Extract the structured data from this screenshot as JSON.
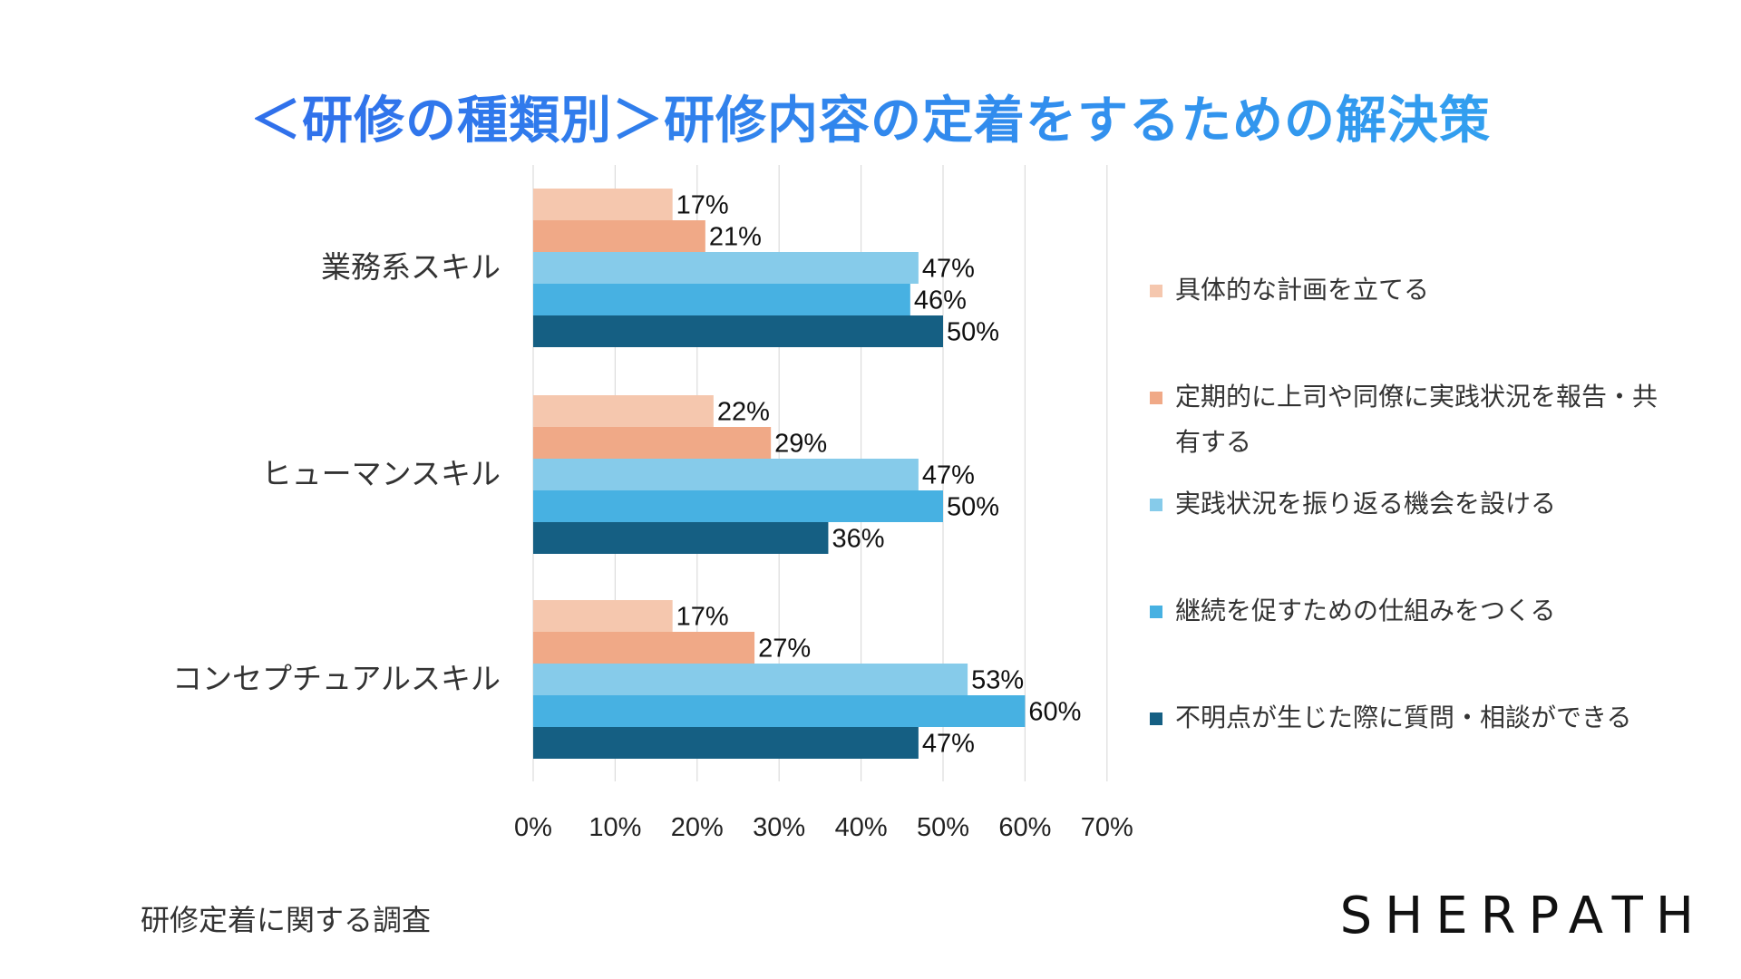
{
  "title": "＜研修の種類別＞研修内容の定着をするための解決策",
  "footer_note": "研修定着に関する調査",
  "brand": "SHERPATH",
  "colors": [
    "#f5c7ae",
    "#f0a987",
    "#86cbea",
    "#47b1e2",
    "#155f83"
  ],
  "chart_data": {
    "type": "bar",
    "orientation": "horizontal",
    "title": "＜研修の種類別＞研修内容の定着をするための解決策",
    "categories": [
      "業務系スキル",
      "ヒューマンスキル",
      "コンセプチュアルスキル"
    ],
    "series": [
      {
        "name": "具体的な計画を立てる",
        "values": [
          17,
          22,
          17
        ]
      },
      {
        "name": "定期的に上司や同僚に実践状況を報告・共有する",
        "values": [
          21,
          29,
          27
        ]
      },
      {
        "name": "実践状況を振り返る機会を設ける",
        "values": [
          47,
          47,
          53
        ]
      },
      {
        "name": "継続を促すための仕組みをつくる",
        "values": [
          46,
          50,
          60
        ]
      },
      {
        "name": "不明点が生じた際に質問・相談ができる",
        "values": [
          50,
          36,
          47
        ]
      }
    ],
    "xlim": [
      0,
      70
    ],
    "xticks": [
      0,
      10,
      20,
      30,
      40,
      50,
      60,
      70
    ],
    "value_suffix": "%",
    "grid": true,
    "legend": "right"
  }
}
